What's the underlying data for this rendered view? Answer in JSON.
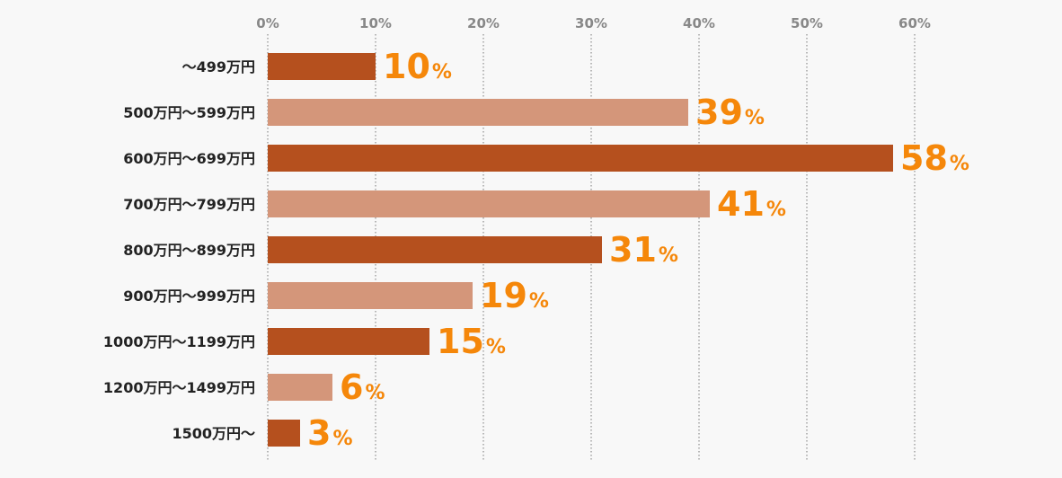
{
  "chart_data": {
    "type": "bar",
    "orientation": "horizontal",
    "categories": [
      "〜499万円",
      "500万円〜599万円",
      "600万円〜699万円",
      "700万円〜799万円",
      "800万円〜899万円",
      "900万円〜999万円",
      "1000万円〜1199万円",
      "1200万円〜1499万円",
      "1500万円〜"
    ],
    "values": [
      10,
      39,
      58,
      41,
      31,
      19,
      15,
      6,
      3
    ],
    "value_labels": [
      "10",
      "39",
      "58",
      "41",
      "31",
      "19",
      "15",
      "6",
      "3"
    ],
    "value_suffix": "%",
    "x_ticks": [
      "0%",
      "10%",
      "20%",
      "30%",
      "40%",
      "50%",
      "60%"
    ],
    "xlim": [
      0,
      60
    ],
    "title": "",
    "xlabel": "",
    "ylabel": "",
    "grid": true,
    "grid_style": "dotted vertical",
    "axis_position": "top",
    "colors": {
      "bar_dark": "#b5501e",
      "bar_light": "#d4967a",
      "value_label": "#f5870a",
      "tick_label": "#888888",
      "category_label": "#222222",
      "grid": "#777777",
      "background": "#f8f8f8"
    }
  }
}
